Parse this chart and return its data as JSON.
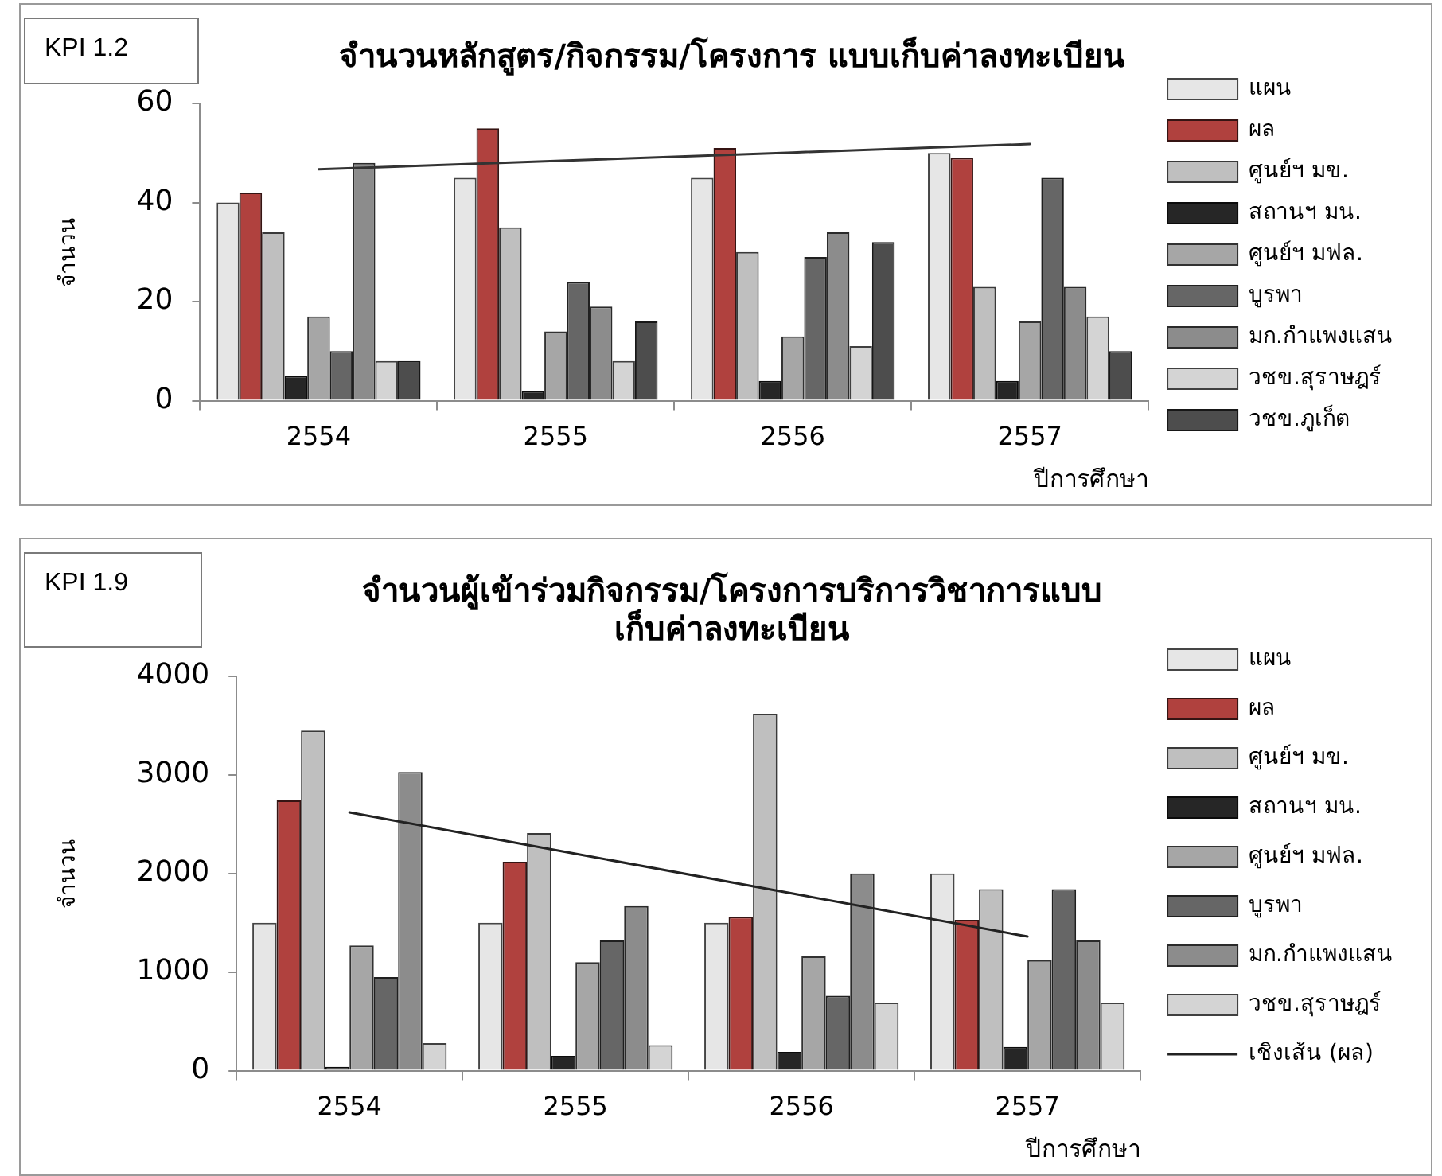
{
  "chart_data": [
    {
      "type": "bar",
      "title": "จำนวนหลักสูตร/กิจกรรม/โครงการ แบบเก็บค่าลงทะเบียน",
      "xlabel": "ปีการศึกษา",
      "ylabel": "จำนวน",
      "annotations": [
        "KPI 1.2"
      ],
      "categories": [
        "2554",
        "2555",
        "2556",
        "2557"
      ],
      "ylim": [
        0,
        60
      ],
      "yticks": [
        0,
        20,
        40,
        60
      ],
      "legend": "right",
      "series": [
        {
          "name": "แผน",
          "color": "#e6e6e6",
          "values": [
            40,
            45,
            45,
            50
          ]
        },
        {
          "name": "ผล",
          "color": "#b0413e",
          "values": [
            42,
            55,
            51,
            49
          ]
        },
        {
          "name": "ศูนย์ฯ มข.",
          "color": "#bfbfbf",
          "values": [
            34,
            35,
            30,
            23
          ]
        },
        {
          "name": "สถานฯ มน.",
          "color": "#262626",
          "values": [
            5,
            2,
            4,
            4
          ]
        },
        {
          "name": "ศูนย์ฯ มฟล.",
          "color": "#a6a6a6",
          "values": [
            17,
            14,
            13,
            16
          ]
        },
        {
          "name": "บูรพา",
          "color": "#666666",
          "values": [
            10,
            24,
            29,
            45
          ]
        },
        {
          "name": "มก.กำแพงแสน",
          "color": "#8c8c8c",
          "values": [
            48,
            19,
            34,
            23
          ]
        },
        {
          "name": "วชข.สุราษฎร์",
          "color": "#d4d4d4",
          "values": [
            8,
            8,
            11,
            17
          ]
        },
        {
          "name": "วชข.ภูเก็ต",
          "color": "#4d4d4d",
          "values": [
            8,
            16,
            32,
            10
          ]
        },
        {
          "type": "line",
          "color": "#333333",
          "values": [
            46.7,
            48.4,
            50.1,
            51.8
          ]
        }
      ]
    },
    {
      "type": "bar",
      "title": "จำนวนผู้เข้าร่วมกิจกรรม/โครงการบริการวิชาการแบบ\nเก็บค่าลงทะเบียน",
      "xlabel": "ปีการศึกษา",
      "ylabel": "จำนวน",
      "annotations": [
        "KPI 1.9"
      ],
      "categories": [
        "2554",
        "2555",
        "2556",
        "2557"
      ],
      "ylim": [
        0,
        4000
      ],
      "yticks": [
        0,
        1000,
        2000,
        3000,
        4000
      ],
      "legend": "right",
      "series": [
        {
          "name": "แผน",
          "color": "#e6e6e6",
          "values": [
            1500,
            1500,
            1500,
            2000
          ]
        },
        {
          "name": "ผล",
          "color": "#b0413e",
          "values": [
            2740,
            2120,
            1560,
            1530
          ]
        },
        {
          "name": "ศูนย์ฯ มข.",
          "color": "#bfbfbf",
          "values": [
            3450,
            2410,
            3620,
            1840
          ]
        },
        {
          "name": "สถานฯ มน.",
          "color": "#262626",
          "values": [
            40,
            150,
            190,
            240
          ]
        },
        {
          "name": "ศูนย์ฯ มฟล.",
          "color": "#a6a6a6",
          "values": [
            1270,
            1100,
            1160,
            1120
          ]
        },
        {
          "name": "บูรพา",
          "color": "#666666",
          "values": [
            950,
            1320,
            760,
            1840
          ]
        },
        {
          "name": "มก.กำแพงแสน",
          "color": "#8c8c8c",
          "values": [
            3030,
            1670,
            2000,
            1320
          ]
        },
        {
          "name": "วชข.สุราษฎร์",
          "color": "#d4d4d4",
          "values": [
            280,
            260,
            690,
            690
          ]
        },
        {
          "name": "เชิงเส้น (ผล)",
          "type": "line",
          "color": "#222222",
          "values": [
            2620,
            2200,
            1780,
            1360
          ]
        }
      ]
    }
  ]
}
